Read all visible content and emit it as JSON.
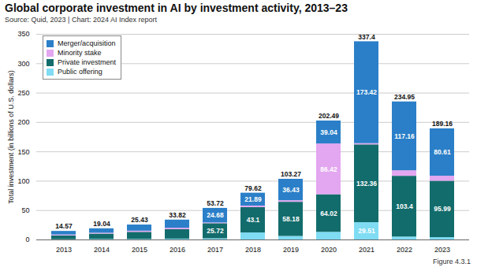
{
  "chart_data": {
    "type": "bar",
    "stacked": true,
    "title": "Global corporate investment in AI by investment activity, 2013–23",
    "subtitle": "Source: Quid, 2023 | Chart: 2024 AI Index report",
    "figure_label": "Figure 4.3.1",
    "y_label": "Total investment (in billions of U.S. dollars)",
    "categories": [
      "2013",
      "2014",
      "2015",
      "2016",
      "2017",
      "2018",
      "2019",
      "2020",
      "2021",
      "2022",
      "2023"
    ],
    "series": [
      {
        "name": "Merger/acquisition",
        "color": "#2b7fc8",
        "values": [
          6.07,
          7.54,
          10.43,
          13.82,
          24.68,
          21.89,
          36.43,
          39.04,
          173.42,
          117.16,
          80.61
        ],
        "value_labels": [
          null,
          null,
          null,
          null,
          "24.68",
          "21.89",
          "36.43",
          "39.04",
          "173.42",
          "117.16",
          "80.61"
        ]
      },
      {
        "name": "Minority stake",
        "color": "#e3a6f0",
        "values": [
          1.5,
          1.5,
          2,
          2.5,
          1.32,
          2.63,
          2.66,
          86.42,
          2.11,
          9.39,
          8.56
        ],
        "value_labels": [
          null,
          null,
          null,
          null,
          null,
          null,
          null,
          "86.42",
          null,
          null,
          null
        ]
      },
      {
        "name": "Private investment",
        "color": "#136c6c",
        "values": [
          6.5,
          9,
          12,
          16,
          25.72,
          43.1,
          58.18,
          64.02,
          132.36,
          103.4,
          95.99
        ],
        "value_labels": [
          null,
          null,
          null,
          null,
          "25.72",
          "43.1",
          "58.18",
          "64.02",
          "132.36",
          "103.4",
          "95.99"
        ]
      },
      {
        "name": "Public offering",
        "color": "#7fdcf3",
        "values": [
          0.5,
          1,
          1,
          1.5,
          2,
          12,
          6,
          13.01,
          29.51,
          5,
          4
        ],
        "value_labels": [
          null,
          null,
          null,
          null,
          null,
          null,
          null,
          null,
          "29.51",
          null,
          null
        ]
      }
    ],
    "totals": [
      14.57,
      19.04,
      25.43,
      33.82,
      53.72,
      79.62,
      103.27,
      202.49,
      337.4,
      234.95,
      189.16
    ],
    "data_labels": true,
    "ylim": [
      0,
      350
    ],
    "yticks": [
      0,
      50,
      100,
      150,
      200,
      250,
      300,
      350
    ],
    "grid": true,
    "legend": "top-left"
  }
}
